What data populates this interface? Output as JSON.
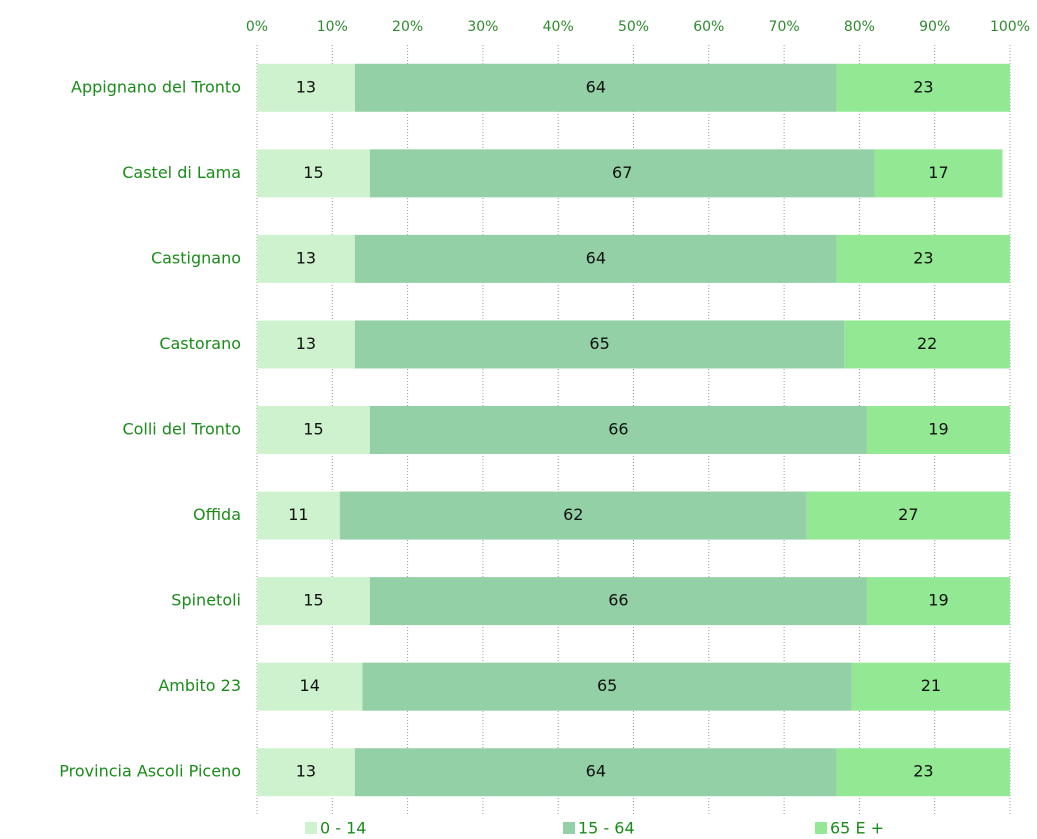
{
  "chart_data": {
    "type": "bar",
    "orientation": "horizontal",
    "stacked": true,
    "categories": [
      "Appignano del Tronto",
      "Castel di Lama",
      "Castignano",
      "Castorano",
      "Colli del Tronto",
      "Offida",
      "Spinetoli",
      "Ambito 23",
      "Provincia Ascoli Piceno"
    ],
    "series": [
      {
        "name": "0 - 14",
        "color": "#cdf2cd",
        "values": [
          13,
          15,
          13,
          13,
          15,
          11,
          15,
          14,
          13
        ]
      },
      {
        "name": "15 - 64",
        "color": "#93d0a6",
        "values": [
          64,
          67,
          64,
          65,
          66,
          62,
          66,
          65,
          64
        ]
      },
      {
        "name": "65 E +",
        "color": "#93e893",
        "values": [
          23,
          17,
          23,
          22,
          19,
          27,
          19,
          21,
          23
        ]
      }
    ],
    "xlim": [
      0,
      100
    ],
    "xticks": [
      {
        "value": 0,
        "label": "0%"
      },
      {
        "value": 10,
        "label": "10%"
      },
      {
        "value": 20,
        "label": "20%"
      },
      {
        "value": 30,
        "label": "30%"
      },
      {
        "value": 40,
        "label": "40%"
      },
      {
        "value": 50,
        "label": "50%"
      },
      {
        "value": 60,
        "label": "60%"
      },
      {
        "value": 70,
        "label": "70%"
      },
      {
        "value": 80,
        "label": "80%"
      },
      {
        "value": 90,
        "label": "90%"
      },
      {
        "value": 100,
        "label": "100%"
      }
    ],
    "grid": true,
    "legend": "bottom"
  }
}
